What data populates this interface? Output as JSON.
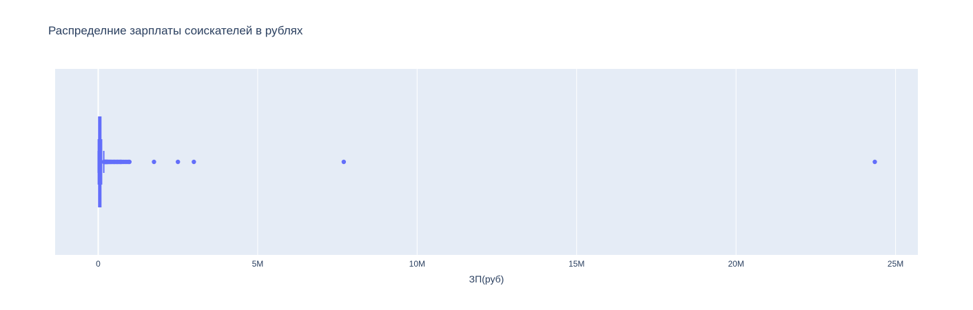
{
  "chart_data": {
    "type": "box",
    "title": "Распределние зарплаты соискателей в рублях",
    "xlabel": "ЗП(руб)",
    "ylabel": "",
    "orientation": "horizontal",
    "xlim": [
      -1350000,
      25700000
    ],
    "xticks": [
      0,
      5000000,
      10000000,
      15000000,
      20000000,
      25000000
    ],
    "xtick_labels": [
      "0",
      "5M",
      "10M",
      "15M",
      "20M",
      "25M"
    ],
    "grid": true,
    "legend": "none",
    "box": {
      "q1": 25000,
      "median": 50000,
      "q3": 85000,
      "whisker_low": 0,
      "whisker_high": 175000
    },
    "outliers": [
      180000,
      190000,
      200000,
      210000,
      220000,
      230000,
      240000,
      250000,
      260000,
      270000,
      280000,
      290000,
      300000,
      320000,
      340000,
      360000,
      380000,
      400000,
      420000,
      450000,
      480000,
      500000,
      520000,
      550000,
      580000,
      600000,
      620000,
      650000,
      680000,
      700000,
      720000,
      750000,
      800000,
      850000,
      900000,
      950000,
      980000,
      1750000,
      2500000,
      3000000,
      7700000,
      24350000
    ],
    "colors": {
      "series": "#636efa",
      "plot_background": "#e5ecf6",
      "grid": "#ffffff",
      "text": "#2a3f5f"
    }
  }
}
